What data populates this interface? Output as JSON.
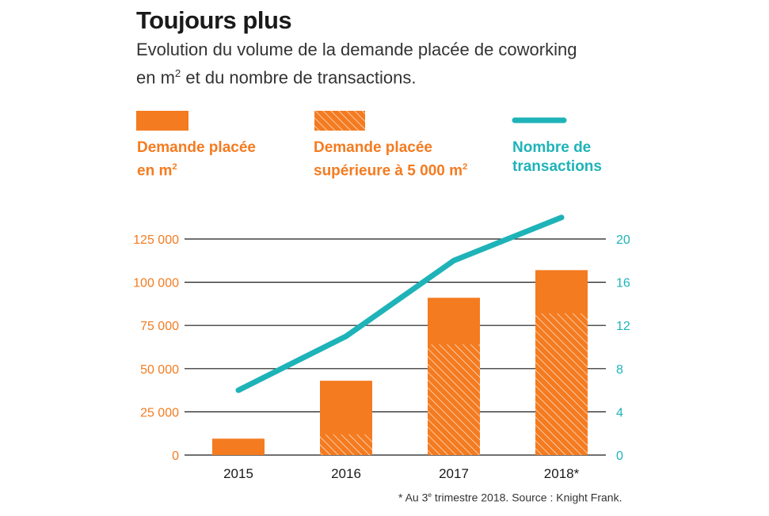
{
  "title": "Toujours plus",
  "subtitle_line1": "Evolution du volume de la demande placée de coworking",
  "subtitle_line2_pre": "en m",
  "subtitle_line2_sup": "2",
  "subtitle_line2_post": " et du nombre de transactions.",
  "legend": {
    "solid": {
      "line1": "Demande placée",
      "line2_pre": "en m",
      "line2_sup": "2",
      "color": "#f47b20"
    },
    "hatched": {
      "line1": "Demande placée",
      "line2_pre": "supérieure à 5 000 m",
      "line2_sup": "2",
      "color": "#f47b20"
    },
    "line": {
      "line1": "Nombre de",
      "line2": "transactions",
      "color": "#1eb3b8"
    }
  },
  "footnote_pre": "* Au 3",
  "footnote_sup": "e",
  "footnote_post": " trimestre 2018. Source : Knight Frank.",
  "chart_data": {
    "type": "bar",
    "categories": [
      "2015",
      "2016",
      "2017",
      "2018*"
    ],
    "series": [
      {
        "name": "Demande placée en m²",
        "values": [
          9500,
          43000,
          91000,
          107000
        ]
      },
      {
        "name": "Demande placée supérieure à 5 000 m²",
        "values": [
          0,
          12000,
          64000,
          82000
        ]
      },
      {
        "name": "Nombre de transactions",
        "axis": "right",
        "values": [
          6,
          11,
          18,
          22
        ]
      }
    ],
    "y_left": {
      "ticks": [
        "0",
        "25 000",
        "50 000",
        "75 000",
        "100 000",
        "125 000"
      ],
      "ylim": [
        0,
        125000
      ],
      "color": "#f47b20"
    },
    "y_right": {
      "ticks": [
        "0",
        "4",
        "8",
        "12",
        "16",
        "20"
      ],
      "ylim": [
        0,
        20
      ],
      "color": "#1eb3b8"
    },
    "grid": true
  }
}
